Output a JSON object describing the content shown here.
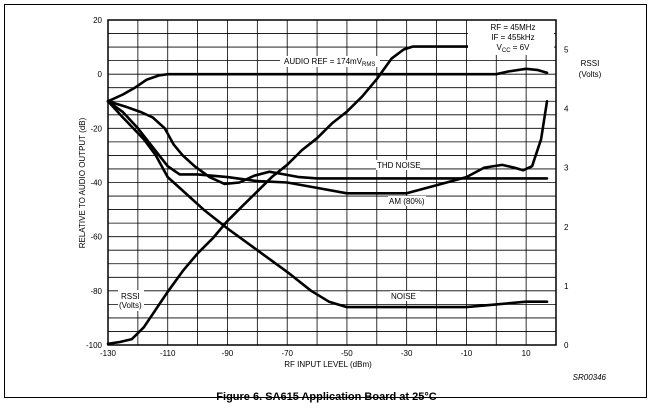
{
  "chart_data": {
    "type": "line",
    "title": "",
    "xlabel": "RF INPUT LEVEL (dBm)",
    "ylabel": "RELATIVE TO AUDIO OUTPUT (dB)",
    "y2label_lines": [
      "RSSI",
      "(Volts)"
    ],
    "xlim": [
      -130,
      20
    ],
    "ylim": [
      -100,
      20
    ],
    "y2lim": [
      0,
      5.5
    ],
    "grid": true,
    "x_ticks": [
      "-130",
      "-110",
      "-90",
      "-70",
      "-50",
      "-30",
      "-10",
      "10"
    ],
    "x_tick_values": [
      -130,
      -110,
      -90,
      -70,
      -50,
      -30,
      -10,
      10
    ],
    "y_ticks": [
      "20",
      "0",
      "-20",
      "-40",
      "-60",
      "-80",
      "-100"
    ],
    "y_tick_values": [
      20,
      0,
      -20,
      -40,
      -60,
      -80,
      -100
    ],
    "y2_ticks": [
      "5",
      "4",
      "3",
      "2",
      "1",
      "0"
    ],
    "y2_tick_values": [
      5,
      4,
      3,
      2,
      1,
      0
    ],
    "conditions": [
      {
        "main": "RF = 45MHz",
        "sub": ""
      },
      {
        "main": "IF = 455kHz",
        "sub": ""
      },
      {
        "main": "V",
        "sub": "CC",
        "rest": " = 6V"
      }
    ],
    "series": [
      {
        "name": "AUDIO REF = 174mV",
        "name_sub": "RMS",
        "axis": "left",
        "points": [
          [
            -130,
            -10
          ],
          [
            -125,
            -7.5
          ],
          [
            -121,
            -5
          ],
          [
            -117,
            -2
          ],
          [
            -113,
            -0.5
          ],
          [
            -110,
            0
          ],
          [
            -90,
            0
          ],
          [
            -70,
            0
          ],
          [
            -50,
            0
          ],
          [
            -30,
            0
          ],
          [
            -10,
            0
          ],
          [
            0,
            0
          ],
          [
            4,
            1
          ],
          [
            10,
            2
          ],
          [
            14,
            1.5
          ],
          [
            17,
            0.5
          ]
        ]
      },
      {
        "name": "THD NOISE",
        "axis": "left",
        "points": [
          [
            -130,
            -10
          ],
          [
            -124,
            -12
          ],
          [
            -119,
            -14
          ],
          [
            -115,
            -16
          ],
          [
            -111,
            -20
          ],
          [
            -108,
            -26
          ],
          [
            -105,
            -30
          ],
          [
            -101,
            -34
          ],
          [
            -96,
            -38
          ],
          [
            -91,
            -40.5
          ],
          [
            -86,
            -40
          ],
          [
            -81,
            -37.5
          ],
          [
            -76,
            -36
          ],
          [
            -71,
            -37
          ],
          [
            -66,
            -38
          ],
          [
            -60,
            -38.5
          ],
          [
            -40,
            -38.5
          ],
          [
            -20,
            -38.5
          ],
          [
            0,
            -38.5
          ],
          [
            17,
            -38.5
          ]
        ]
      },
      {
        "name": "AM (80%)",
        "axis": "left",
        "points": [
          [
            -130,
            -10
          ],
          [
            -125,
            -14
          ],
          [
            -120,
            -20
          ],
          [
            -115,
            -27
          ],
          [
            -110,
            -34
          ],
          [
            -106,
            -37
          ],
          [
            -100,
            -37
          ],
          [
            -90,
            -38
          ],
          [
            -80,
            -39.5
          ],
          [
            -70,
            -40
          ],
          [
            -60,
            -42
          ],
          [
            -50,
            -44
          ],
          [
            -40,
            -44
          ],
          [
            -30,
            -44
          ],
          [
            -20,
            -41
          ],
          [
            -10,
            -38
          ],
          [
            -4,
            -34.5
          ],
          [
            2,
            -33.5
          ],
          [
            6,
            -34.5
          ],
          [
            9,
            -35.5
          ],
          [
            12,
            -34
          ],
          [
            15,
            -24
          ],
          [
            17,
            -10
          ]
        ]
      },
      {
        "name": "NOISE",
        "axis": "left",
        "points": [
          [
            -130,
            -10
          ],
          [
            -125,
            -16
          ],
          [
            -118,
            -24
          ],
          [
            -114,
            -30
          ],
          [
            -110,
            -38
          ],
          [
            -105,
            -43
          ],
          [
            -98,
            -50
          ],
          [
            -90,
            -57
          ],
          [
            -80,
            -65
          ],
          [
            -70,
            -73
          ],
          [
            -62,
            -80
          ],
          [
            -56,
            -84
          ],
          [
            -50,
            -86
          ],
          [
            -40,
            -86
          ],
          [
            -20,
            -86
          ],
          [
            -10,
            -86
          ],
          [
            0,
            -85
          ],
          [
            10,
            -84
          ],
          [
            17,
            -84
          ]
        ]
      },
      {
        "name": "RSSI (Volts)",
        "axis": "right",
        "points": [
          [
            -130,
            0.02
          ],
          [
            -126,
            0.05
          ],
          [
            -122,
            0.1
          ],
          [
            -118,
            0.3
          ],
          [
            -114,
            0.6
          ],
          [
            -110,
            0.9
          ],
          [
            -105,
            1.25
          ],
          [
            -100,
            1.55
          ],
          [
            -95,
            1.8
          ],
          [
            -90,
            2.1
          ],
          [
            -85,
            2.35
          ],
          [
            -80,
            2.6
          ],
          [
            -75,
            2.85
          ],
          [
            -70,
            3.05
          ],
          [
            -65,
            3.3
          ],
          [
            -60,
            3.5
          ],
          [
            -55,
            3.75
          ],
          [
            -50,
            3.95
          ],
          [
            -45,
            4.2
          ],
          [
            -40,
            4.5
          ],
          [
            -35,
            4.85
          ],
          [
            -31,
            5.0
          ],
          [
            -28,
            5.05
          ],
          [
            -20,
            5.05
          ],
          [
            0,
            5.05
          ],
          [
            17,
            5.05
          ]
        ]
      }
    ],
    "annotations": {
      "audio_ref": "AUDIO REF = 174mV",
      "audio_ref_sub": "RMS",
      "thd_noise": "THD NOISE",
      "am": "AM (80%)",
      "noise": "NOISE",
      "rssi_curve_line1": "RSSI",
      "rssi_curve_line2": "(Volts)",
      "figure_id": "SR00346"
    }
  },
  "caption": "Figure 6.  SA615 Application Board at 25°C",
  "colors": {
    "line": "#000000",
    "grid": "#000000",
    "background": "#ffffff"
  }
}
